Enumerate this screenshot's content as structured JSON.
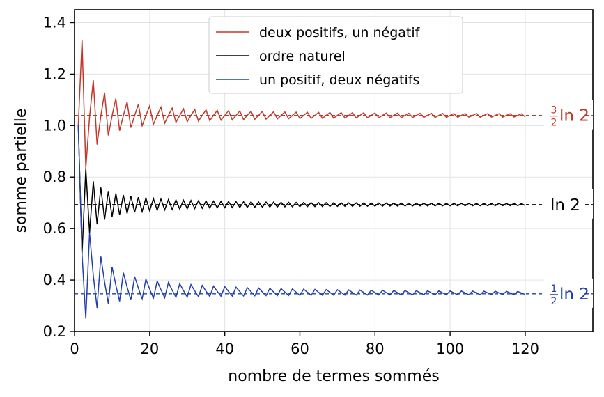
{
  "chart_data": {
    "type": "line",
    "xlabel": "nombre de termes sommés",
    "ylabel": "somme partielle",
    "xlim": [
      0,
      138
    ],
    "ylim": [
      0.2,
      1.45
    ],
    "xticks": [
      0,
      20,
      40,
      60,
      80,
      100,
      120
    ],
    "yticks": [
      0.2,
      0.4,
      0.6,
      0.8,
      1.0,
      1.2,
      1.4
    ],
    "xtick_labels": [
      "0",
      "20",
      "40",
      "60",
      "80",
      "100",
      "120"
    ],
    "ytick_labels": [
      "0.2",
      "0.4",
      "0.6",
      "0.8",
      "1.0",
      "1.2",
      "1.4"
    ],
    "grid": true,
    "legend_position": "top-center",
    "legend": [
      "deux positifs, un négatif",
      "ordre naturel",
      "un positif, deux négatifs"
    ],
    "n_terms": 120,
    "series": [
      {
        "name": "deux positifs, un négatif",
        "color": "#c0392b",
        "rule": "two positive odd-reciprocal terms then one negative even-reciprocal term",
        "limit": 1.0397
      },
      {
        "name": "ordre naturel",
        "color": "#000000",
        "rule": "alternating harmonic series 1 - 1/2 + 1/3 - ...",
        "limit": 0.6931
      },
      {
        "name": "un positif, deux négatifs",
        "color": "#2340a8",
        "rule": "one positive odd-reciprocal term then two negative even-reciprocal terms",
        "limit": 0.3466
      }
    ],
    "reference_lines": [
      {
        "y": 1.0397,
        "color": "#c0392b",
        "style": "dashed",
        "label_num": "3",
        "label_den": "2",
        "label_rest": "ln 2"
      },
      {
        "y": 0.6931,
        "color": "#000000",
        "style": "dashed",
        "label_num": "",
        "label_den": "",
        "label_rest": "ln 2"
      },
      {
        "y": 0.3466,
        "color": "#2340a8",
        "style": "dashed",
        "label_num": "1",
        "label_den": "2",
        "label_rest": "ln 2"
      }
    ]
  }
}
